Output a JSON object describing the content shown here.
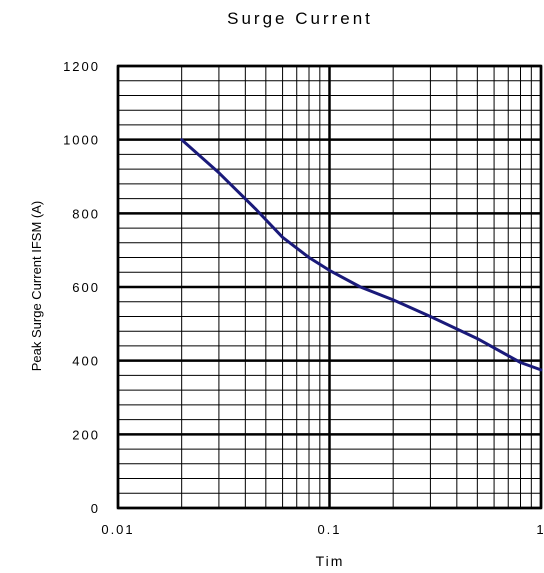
{
  "chart_data": {
    "type": "line",
    "title": "Surge Current",
    "xlabel": "Tim",
    "ylabel": "Peak Surge Current IFSM (A)",
    "x_scale": "log",
    "xlim": [
      0.01,
      1
    ],
    "ylim": [
      0,
      1200
    ],
    "x_ticks": [
      "0.01",
      "0.1",
      "1"
    ],
    "y_ticks": [
      "0",
      "200",
      "400",
      "600",
      "800",
      "1000",
      "1200"
    ],
    "grid": true,
    "series": [
      {
        "x": [
          0.02,
          0.03,
          0.045,
          0.06,
          0.08,
          0.1,
          0.14,
          0.2,
          0.3,
          0.5,
          0.8,
          1.0
        ],
        "y": [
          1000,
          910,
          810,
          735,
          680,
          645,
          600,
          565,
          520,
          460,
          395,
          375
        ]
      }
    ],
    "colors": {
      "line": "#1a1a7a",
      "grid": "#000000"
    }
  }
}
